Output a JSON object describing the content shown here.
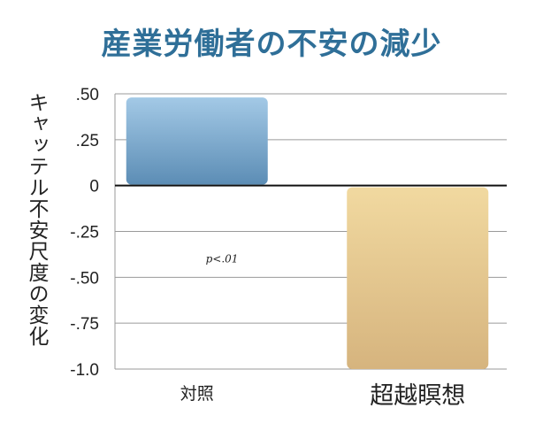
{
  "chart_data": {
    "type": "bar",
    "title": "産業労働者の不安の減少",
    "ylabel": "キャッテル不安尺度の変化",
    "xlabel": "",
    "categories": [
      "対照",
      "超越瞑想"
    ],
    "values": [
      0.48,
      -1.0
    ],
    "ylim": [
      -1.0,
      0.5
    ],
    "yticks": [
      {
        "value": 0.5,
        "label": ".50"
      },
      {
        "value": 0.25,
        "label": ".25"
      },
      {
        "value": 0,
        "label": "0"
      },
      {
        "value": -0.25,
        "label": "-.25"
      },
      {
        "value": -0.5,
        "label": "-.50"
      },
      {
        "value": -0.75,
        "label": "-.75"
      },
      {
        "value": -1.0,
        "label": "-1.0"
      }
    ],
    "grid": true,
    "annotation": "p<.01",
    "colors": {
      "control_top": "#a3c9e6",
      "control_bottom": "#5c8db5",
      "tm_top": "#f1d9a0",
      "tm_bottom": "#d6b47e",
      "title": "#2f6f98"
    }
  }
}
